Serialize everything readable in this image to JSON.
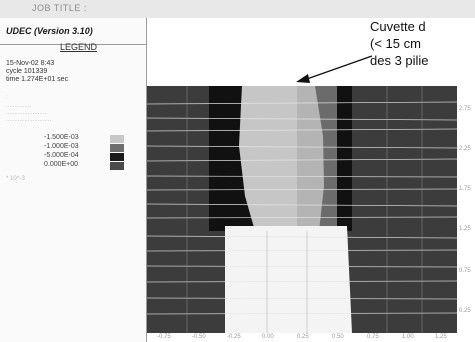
{
  "window": {
    "top_label": "JOB TITLE :",
    "app_title": "UDEC (Version 3.10)"
  },
  "legend": {
    "title": "LEGEND",
    "date_line": "15-Nov-02  8:43",
    "cycle_line": "cycle  101339",
    "time_line": "time   1.274E+01 sec",
    "faint_lines": [
      ":",
      "...............",
      ".........................",
      "..........................."
    ],
    "scale_values": [
      "-1.500E-03",
      "-1.000E-03",
      "-5.000E-04",
      "0.000E+00"
    ],
    "footer_faint": "* 10^-3",
    "swatch_colors": [
      "#c8c8c8",
      "#6e6e6e",
      "#1a1a1a",
      "#4a4a4a"
    ]
  },
  "annotation": {
    "line1": "Cuvette d",
    "line2": "(< 15 cm",
    "line3": "des 3 pilie"
  },
  "axes": {
    "x_ticks": [
      "-0.75",
      "-0.50",
      "-0.25",
      "0.00",
      "0.25",
      "0.50",
      "0.75",
      "1.00",
      "1.25"
    ],
    "y_ticks": [
      "2.75",
      "2.25",
      "1.75",
      "1.25",
      "0.75",
      "0.25"
    ]
  },
  "colors": {
    "background_gray": "#3a3a3a",
    "light_gray": "#c8c8c8",
    "black": "#111111",
    "white": "#ffffff"
  }
}
